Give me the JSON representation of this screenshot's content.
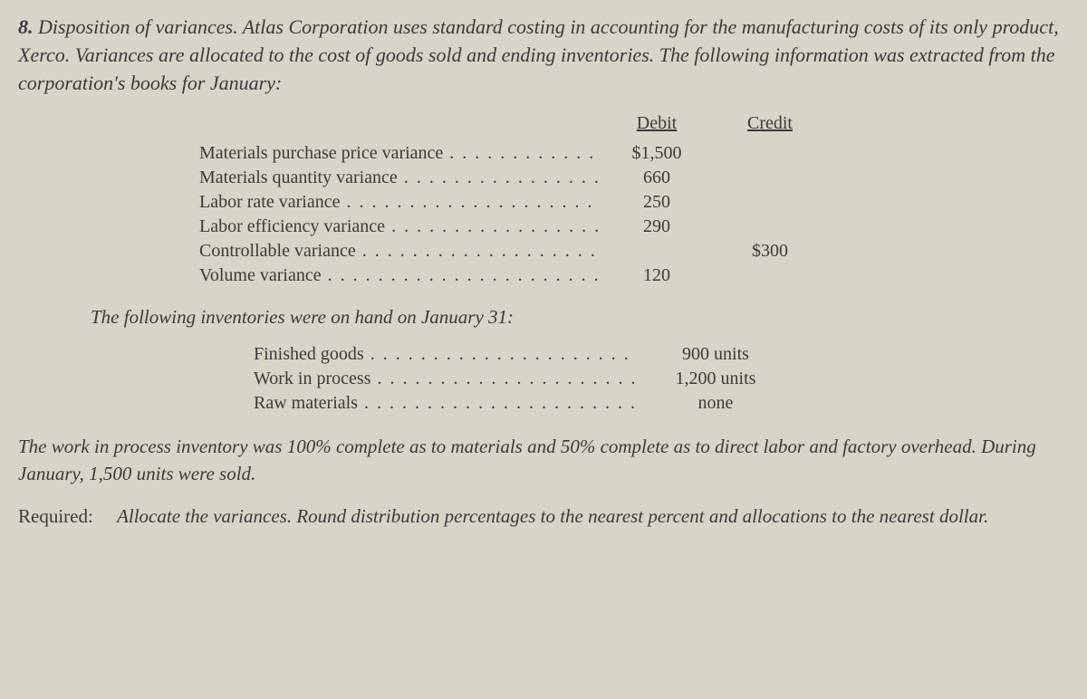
{
  "problem": {
    "number": "8.",
    "title": "Disposition of variances.",
    "intro": "Atlas Corporation uses standard costing in accounting for the manufacturing costs of its only product, Xerco. Variances are allocated to the cost of goods sold and ending inventories. The following information was extracted from the corporation's books for January:"
  },
  "variance_table": {
    "headers": {
      "debit": "Debit",
      "credit": "Credit"
    },
    "rows": [
      {
        "label": "Materials purchase price variance",
        "debit": "$1,500",
        "credit": ""
      },
      {
        "label": "Materials quantity variance",
        "debit": "660",
        "credit": ""
      },
      {
        "label": "Labor rate variance",
        "debit": "250",
        "credit": ""
      },
      {
        "label": "Labor efficiency variance",
        "debit": "290",
        "credit": ""
      },
      {
        "label": "Controllable variance",
        "debit": "",
        "credit": "$300"
      },
      {
        "label": "Volume variance",
        "debit": "120",
        "credit": ""
      }
    ]
  },
  "inventory_intro": "The following inventories were on hand on January 31:",
  "inventory_table": {
    "rows": [
      {
        "label": "Finished goods",
        "value": "900 units"
      },
      {
        "label": "Work in process",
        "value": "1,200 units"
      },
      {
        "label": "Raw materials",
        "value": "none"
      }
    ]
  },
  "wip_text": "The work in process inventory was 100% complete as to materials and 50% complete as to direct labor and factory overhead. During January, 1,500 units were sold.",
  "required": {
    "label": "Required:",
    "text": "Allocate the variances. Round distribution percentages to the nearest percent and allocations to the nearest dollar."
  },
  "styling": {
    "background_color": "#d8d4c8",
    "text_color": "#3a3a3a",
    "font_family": "Georgia, Times New Roman, serif",
    "body_fontsize": 21,
    "table_fontsize": 20
  }
}
